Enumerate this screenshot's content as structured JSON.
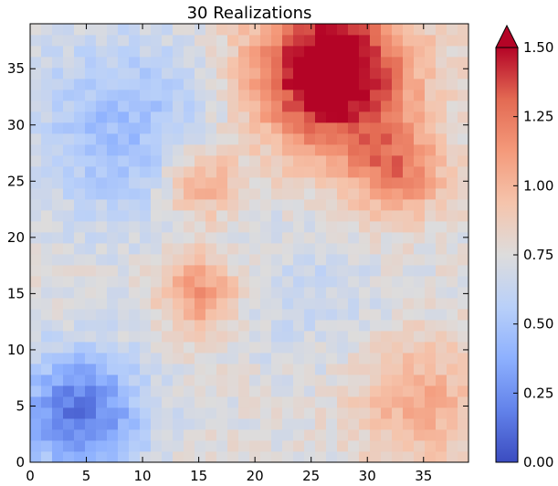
{
  "chart_data": {
    "type": "heatmap",
    "title": "30 Realizations",
    "xlabel": "",
    "ylabel": "",
    "grid": false,
    "x_range": [
      0,
      39
    ],
    "y_range": [
      0,
      39
    ],
    "x_ticks": [
      0,
      5,
      10,
      15,
      20,
      25,
      30,
      35
    ],
    "y_ticks": [
      0,
      5,
      10,
      15,
      20,
      25,
      30,
      35
    ],
    "x_tick_labels": [
      "0",
      "5",
      "10",
      "15",
      "20",
      "25",
      "30",
      "35"
    ],
    "y_tick_labels": [
      "0",
      "5",
      "10",
      "15",
      "20",
      "25",
      "30",
      "35"
    ],
    "grid_size": [
      40,
      40
    ],
    "colormap": "coolwarm",
    "colorbar": {
      "min": 0.0,
      "max": 1.5,
      "extend": "max",
      "ticks": [
        0.0,
        0.25,
        0.5,
        0.75,
        1.0,
        1.25,
        1.5
      ],
      "tick_labels": [
        "0.00",
        "0.25",
        "0.50",
        "0.75",
        "1.00",
        "1.25",
        "1.50"
      ],
      "stops": [
        "#3b4cc0",
        "#6282ea",
        "#8db0fe",
        "#b9d0f9",
        "#dddcdc",
        "#f5c4ac",
        "#f49a7b",
        "#e36a53",
        "#b40426"
      ]
    },
    "features": [
      {
        "cx": 4,
        "cy": 4,
        "sigma": 4,
        "amplitude": -0.6
      },
      {
        "cx": 27,
        "cy": 35,
        "sigma": 5,
        "amplitude": 0.95
      },
      {
        "cx": 33,
        "cy": 26,
        "sigma": 3,
        "amplitude": 0.45
      },
      {
        "cx": 15,
        "cy": 15,
        "sigma": 2.5,
        "amplitude": 0.4
      },
      {
        "cx": 15,
        "cy": 25,
        "sigma": 2.5,
        "amplitude": 0.35
      },
      {
        "cx": 8,
        "cy": 30,
        "sigma": 6,
        "amplitude": -0.3
      },
      {
        "cx": 25,
        "cy": 15,
        "sigma": 5,
        "amplitude": -0.1
      },
      {
        "cx": 35,
        "cy": 5,
        "sigma": 4,
        "amplitude": 0.3
      }
    ],
    "base_value": 0.75,
    "noise_amplitude": 0.08
  }
}
